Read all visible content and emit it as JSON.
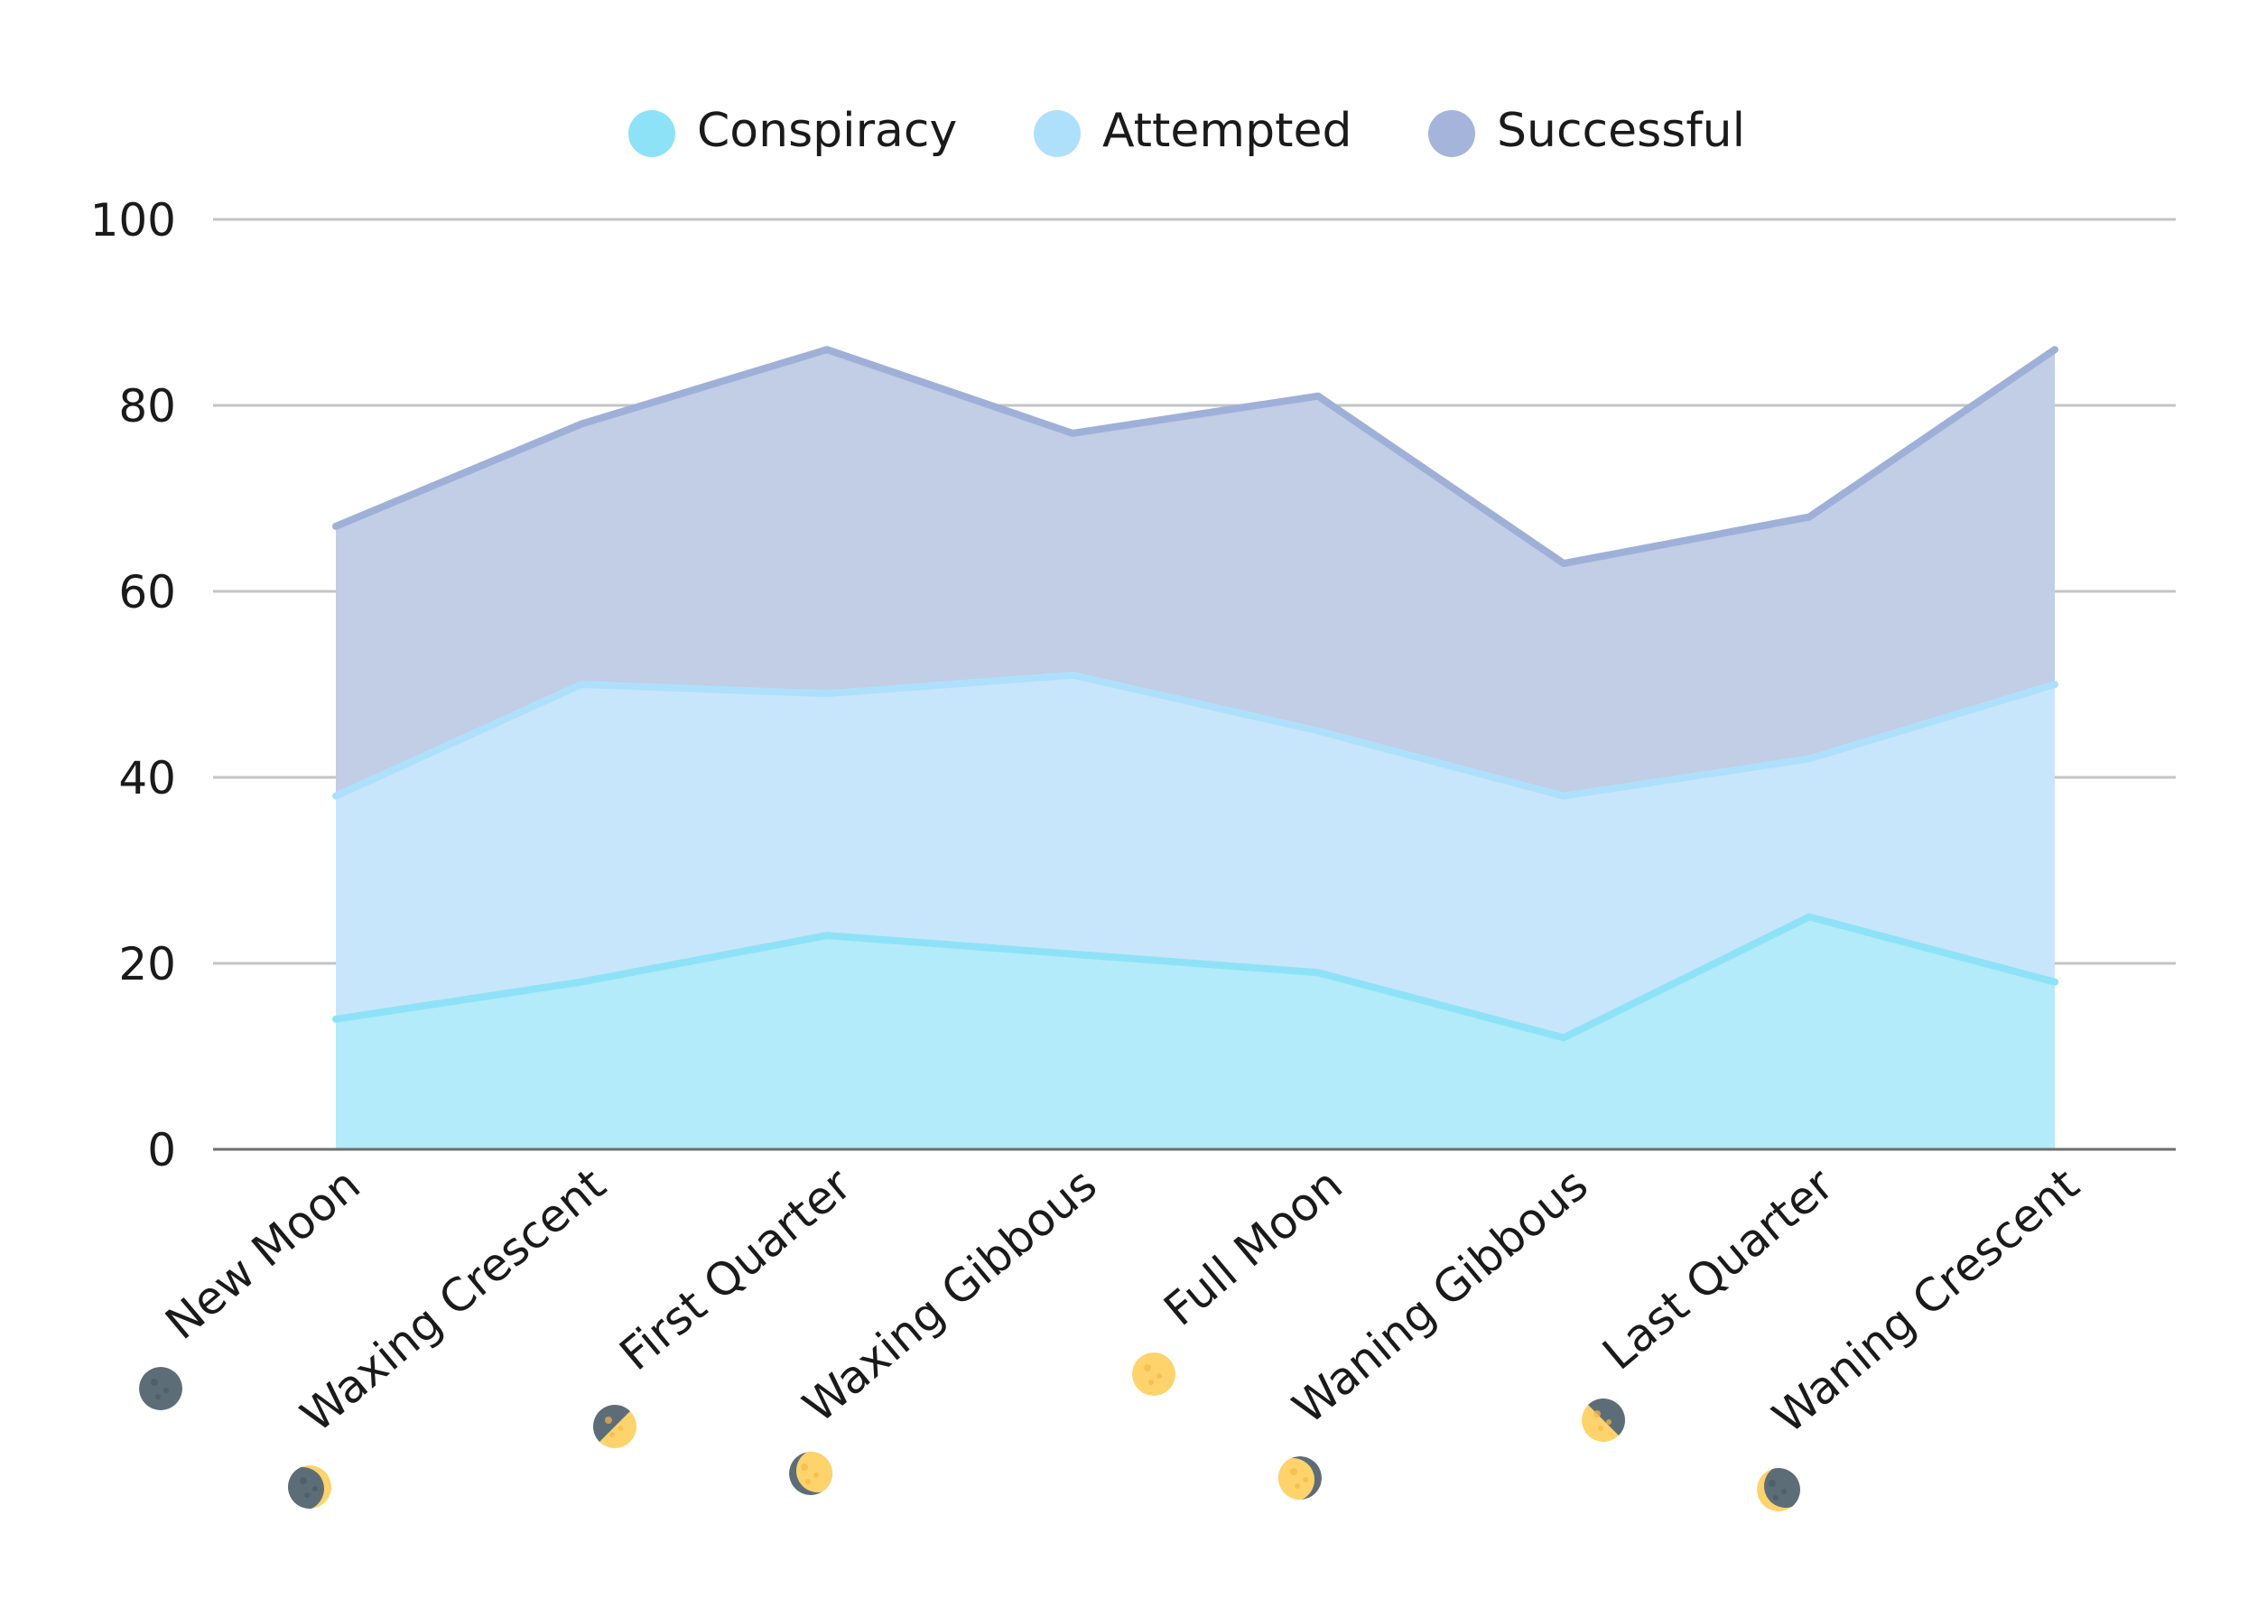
{
  "chart_data": {
    "type": "area",
    "title": "",
    "xlabel": "",
    "ylabel": "",
    "ylim": [
      0,
      100
    ],
    "yticks": [
      0,
      20,
      40,
      60,
      80,
      100
    ],
    "grid": true,
    "legend_position": "top-center",
    "stacked": false,
    "categories": [
      "New Moon",
      "Waxing Crescent",
      "First Quarter",
      "Waxing Gibbous",
      "Full Moon",
      "Waning Gibbous",
      "Last Quarter",
      "Waning Crescent"
    ],
    "category_icons": [
      "new-moon-icon",
      "waxing-crescent-moon-icon",
      "first-quarter-moon-icon",
      "waxing-gibbous-moon-icon",
      "full-moon-icon",
      "waning-gibbous-moon-icon",
      "last-quarter-moon-icon",
      "waning-crescent-moon-icon"
    ],
    "series": [
      {
        "name": "Successful",
        "values": [
          67,
          78,
          86,
          77,
          81,
          63,
          68,
          86
        ],
        "line_color": "#9fb0d8",
        "fill_color": "#c2cde6"
      },
      {
        "name": "Attempted",
        "values": [
          38,
          50,
          49,
          51,
          45,
          38,
          42,
          50
        ],
        "line_color": "#aee0fb",
        "fill_color": "#c8e6fb"
      },
      {
        "name": "Conspiracy",
        "values": [
          14,
          18,
          23,
          21,
          19,
          12,
          25,
          18
        ],
        "line_color": "#8ee2f8",
        "fill_color": "#b3ebfa"
      }
    ],
    "legend": [
      {
        "name": "Conspiracy",
        "color": "#8ee2f8"
      },
      {
        "name": "Attempted",
        "color": "#aee0fb"
      },
      {
        "name": "Successful",
        "color": "#a5b4da"
      }
    ]
  }
}
